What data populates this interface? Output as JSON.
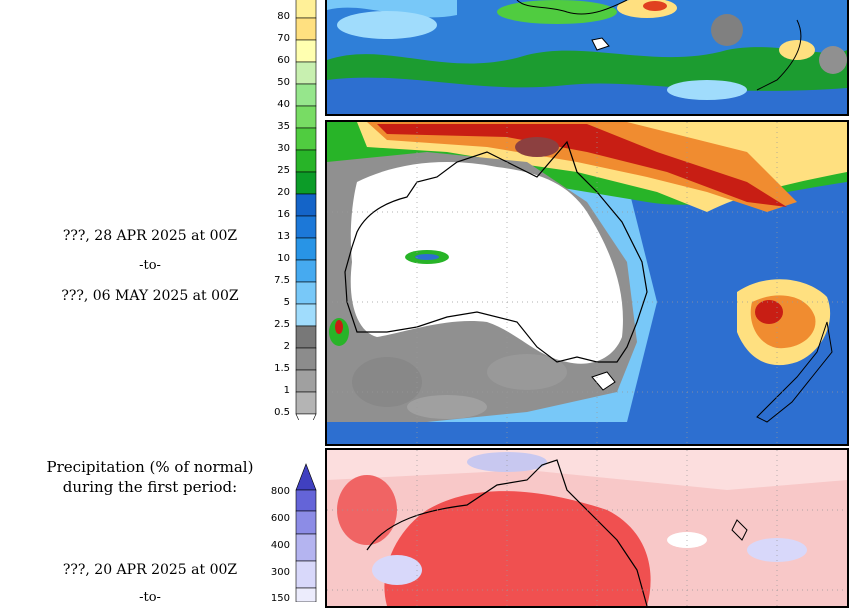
{
  "top_section": {
    "date_start": "???, 28 APR 2025 at 00Z",
    "to": "-to-",
    "date_end": "???, 06 MAY 2025 at 00Z"
  },
  "scale1": {
    "ticks": [
      "80",
      "70",
      "60",
      "50",
      "40",
      "35",
      "30",
      "25",
      "20",
      "16",
      "13",
      "10",
      "7.5",
      "5",
      "2.5",
      "2",
      "1.5",
      "1",
      "0.5"
    ],
    "colors": [
      "#fff098",
      "#ffe080",
      "#ffffb0",
      "#c8f0b0",
      "#96e68c",
      "#78dc64",
      "#50cc40",
      "#28b428",
      "#0c9c28",
      "#1464c8",
      "#1c78d8",
      "#2894e6",
      "#46aaf0",
      "#78c8f8",
      "#a0dcfc",
      "#787878",
      "#8c8c8c",
      "#a0a0a0",
      "#b4b4b4",
      "#c8c8c8"
    ]
  },
  "bottom_section": {
    "title_line1": "Precipitation (% of normal)",
    "title_line2": "during the first period:",
    "date_start": "???, 20 APR 2025 at 00Z",
    "to": "-to-"
  },
  "scale2": {
    "ticks": [
      "800",
      "600",
      "400",
      "300",
      "150"
    ],
    "colors": [
      "#4040c0",
      "#6464d8",
      "#8c8ce6",
      "#b4b4f0",
      "#d8d8fa",
      "#ececfc"
    ]
  }
}
